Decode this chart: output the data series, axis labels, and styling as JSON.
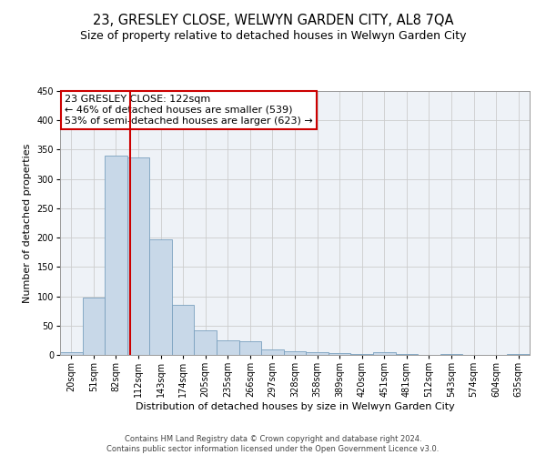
{
  "title": "23, GRESLEY CLOSE, WELWYN GARDEN CITY, AL8 7QA",
  "subtitle": "Size of property relative to detached houses in Welwyn Garden City",
  "xlabel": "Distribution of detached houses by size in Welwyn Garden City",
  "ylabel": "Number of detached properties",
  "footer_line1": "Contains HM Land Registry data © Crown copyright and database right 2024.",
  "footer_line2": "Contains public sector information licensed under the Open Government Licence v3.0.",
  "categories": [
    "20sqm",
    "51sqm",
    "82sqm",
    "112sqm",
    "143sqm",
    "174sqm",
    "205sqm",
    "235sqm",
    "266sqm",
    "297sqm",
    "328sqm",
    "358sqm",
    "389sqm",
    "420sqm",
    "451sqm",
    "481sqm",
    "512sqm",
    "543sqm",
    "574sqm",
    "604sqm",
    "635sqm"
  ],
  "values": [
    5,
    97,
    340,
    336,
    197,
    85,
    42,
    25,
    23,
    10,
    6,
    4,
    3,
    2,
    5,
    1,
    0,
    1,
    0,
    0,
    2
  ],
  "bar_color": "#c8d8e8",
  "bar_edge_color": "#7aa0be",
  "red_line_x": 2.62,
  "annotation_line1": "23 GRESLEY CLOSE: 122sqm",
  "annotation_line2": "← 46% of detached houses are smaller (539)",
  "annotation_line3": "53% of semi-detached houses are larger (623) →",
  "annotation_box_color": "white",
  "annotation_box_edge_color": "#cc0000",
  "red_line_color": "#cc0000",
  "ylim": [
    0,
    450
  ],
  "yticks": [
    0,
    50,
    100,
    150,
    200,
    250,
    300,
    350,
    400,
    450
  ],
  "grid_color": "#cccccc",
  "background_color": "#eef2f7",
  "title_fontsize": 10.5,
  "subtitle_fontsize": 9,
  "annotation_fontsize": 8,
  "ylabel_fontsize": 8,
  "xlabel_fontsize": 8,
  "tick_fontsize": 7,
  "footer_fontsize": 6
}
